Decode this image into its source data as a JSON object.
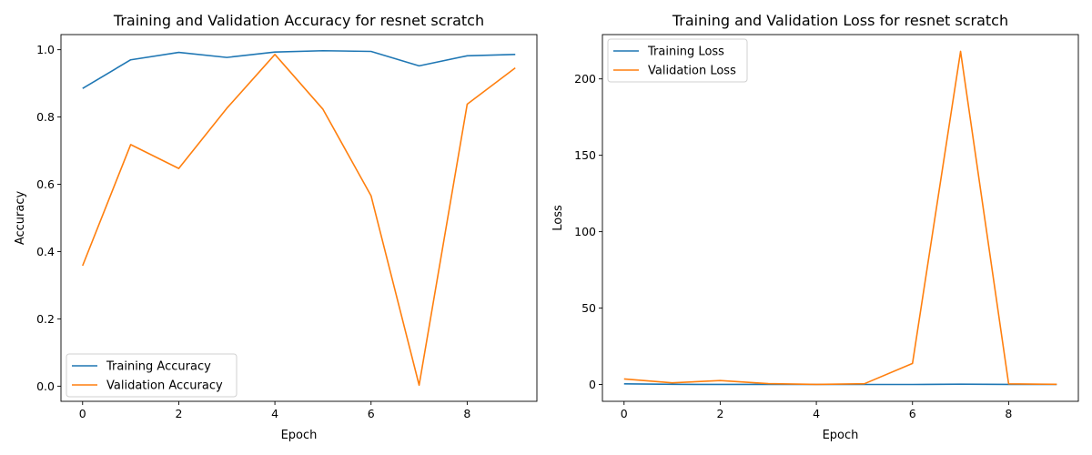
{
  "chart_data": [
    {
      "type": "line",
      "title": "Training and Validation Accuracy for resnet scratch",
      "xlabel": "Epoch",
      "ylabel": "Accuracy",
      "xlim": [
        -0.45,
        9.45
      ],
      "ylim": [
        -0.045,
        1.045
      ],
      "xticks": [
        0,
        2,
        4,
        6,
        8
      ],
      "yticks": [
        0.0,
        0.2,
        0.4,
        0.6,
        0.8,
        1.0
      ],
      "ytick_decimals": 1,
      "grid": false,
      "legend_position": "lower-left",
      "x": [
        0,
        1,
        2,
        3,
        4,
        5,
        6,
        7,
        8,
        9
      ],
      "series": [
        {
          "name": "Training Accuracy",
          "color": "#1f77b4",
          "values": [
            0.885,
            0.97,
            0.992,
            0.977,
            0.993,
            0.997,
            0.995,
            0.952,
            0.982,
            0.986
          ]
        },
        {
          "name": "Validation Accuracy",
          "color": "#ff7f0e",
          "values": [
            0.358,
            0.718,
            0.647,
            0.826,
            0.986,
            0.823,
            0.566,
            0.003,
            0.838,
            0.946
          ]
        }
      ]
    },
    {
      "type": "line",
      "title": "Training and Validation Loss for resnet scratch",
      "xlabel": "Epoch",
      "ylabel": "Loss",
      "xlim": [
        -0.45,
        9.45
      ],
      "ylim": [
        -11,
        229
      ],
      "xticks": [
        0,
        2,
        4,
        6,
        8
      ],
      "yticks": [
        0,
        50,
        100,
        150,
        200
      ],
      "ytick_decimals": 0,
      "grid": false,
      "legend_position": "upper-left",
      "x": [
        0,
        1,
        2,
        3,
        4,
        5,
        6,
        7,
        8,
        9
      ],
      "series": [
        {
          "name": "Training Loss",
          "color": "#1f77b4",
          "values": [
            0.4,
            0.1,
            0.03,
            0.08,
            0.02,
            0.01,
            0.02,
            0.2,
            0.05,
            0.04
          ]
        },
        {
          "name": "Validation Loss",
          "color": "#ff7f0e",
          "values": [
            3.6,
            1.1,
            2.6,
            0.6,
            0.05,
            0.5,
            13.8,
            218,
            0.4,
            0.15
          ]
        }
      ]
    }
  ]
}
